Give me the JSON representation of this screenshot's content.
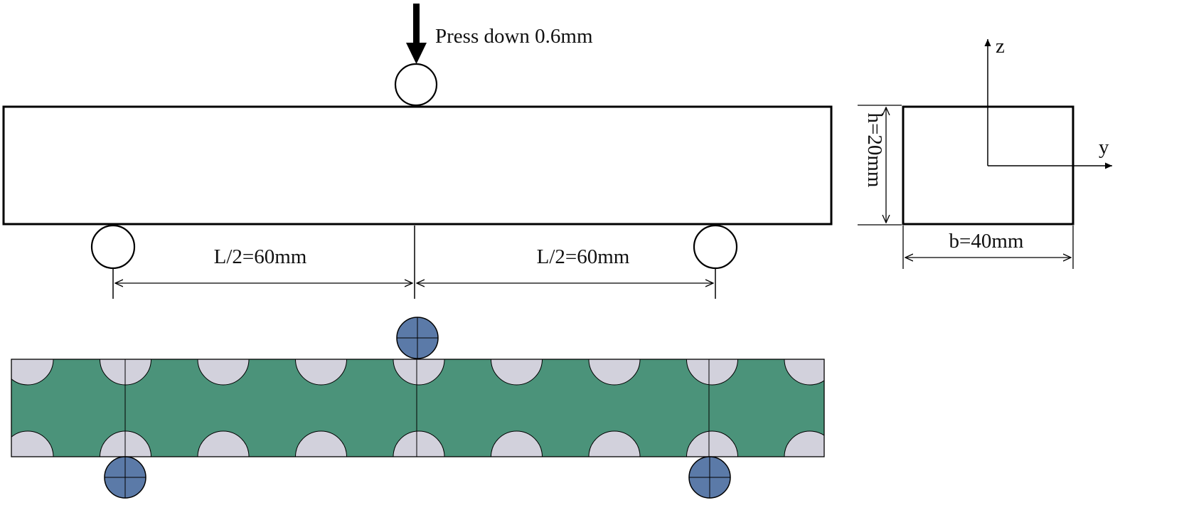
{
  "load": {
    "label": "Press down 0.6mm"
  },
  "dimensions": {
    "left_span": "L/2=60mm",
    "right_span": "L/2=60mm",
    "height": "h=20mm",
    "width": "b=40mm"
  },
  "axes": {
    "z_label": "z",
    "y_label": "y"
  },
  "colors": {
    "line": "#000000",
    "matrix": "#4b937a",
    "inclusion": "#d2d1dc",
    "roller": "#5b7aa8"
  },
  "model": {
    "inclusions_per_edge": 9,
    "rollers": 3
  }
}
